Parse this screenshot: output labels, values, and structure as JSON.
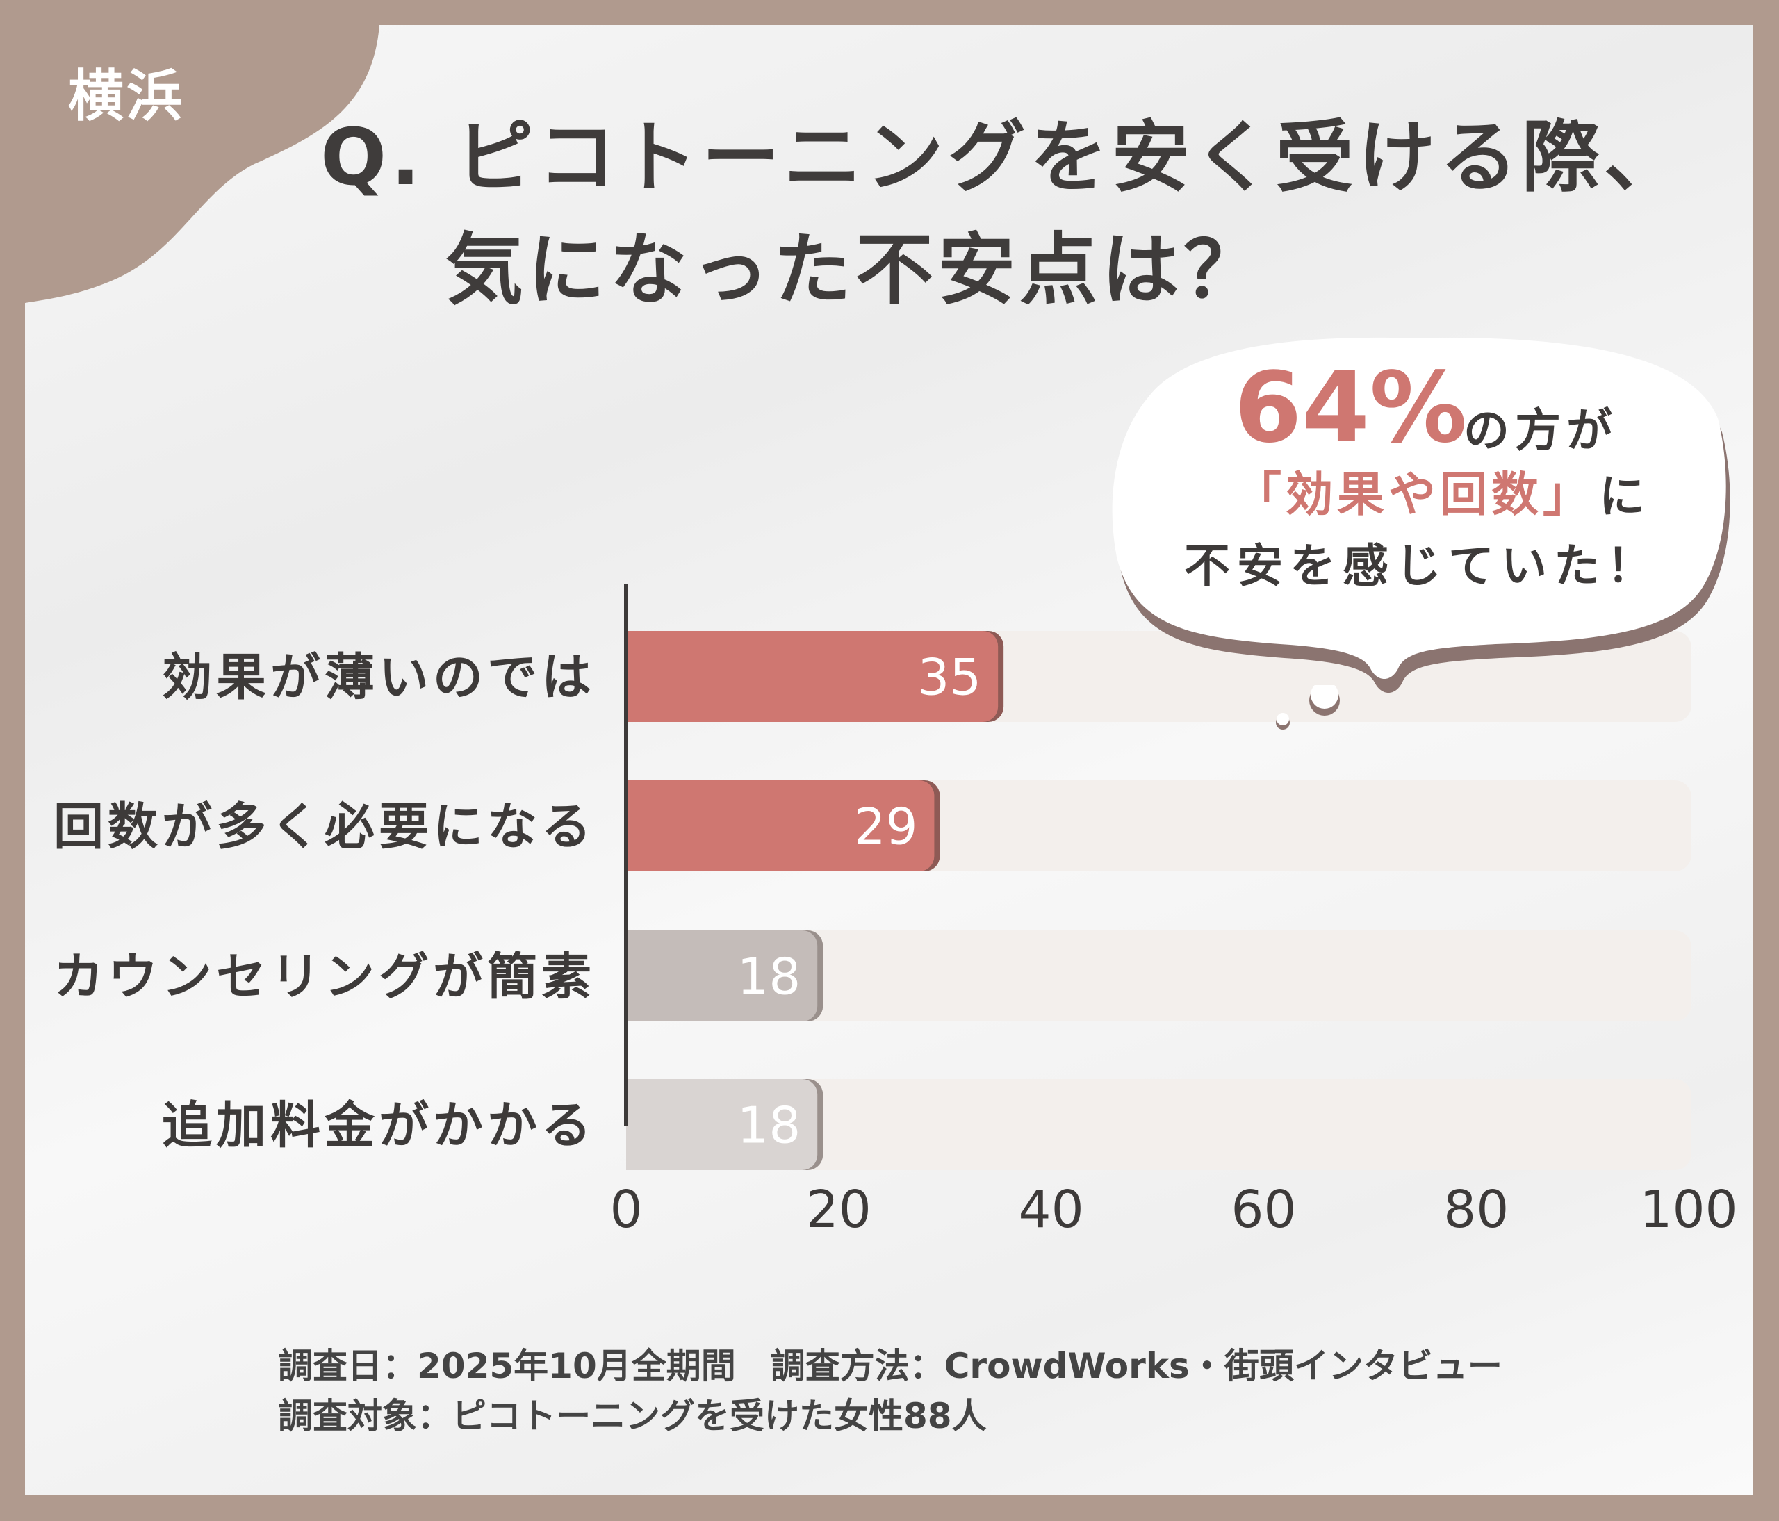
{
  "badge": "横浜",
  "title_line1": "Q. ピコトーニングを安く受ける際、",
  "title_line2": "気になった不安点は？",
  "callout": {
    "percent": "64%",
    "line1_rest": "の方が",
    "highlight": "「効果や回数」",
    "line2_rest": "に",
    "line3": "不安を感じていた！"
  },
  "footer": {
    "line1": "調査日：2025年10月全期間　調査方法：CrowdWorks・街頭インタビュー",
    "line2": "調査対象：ピコトーニングを受けた女性88人"
  },
  "colors": {
    "frame": "#b09a8e",
    "highlight_bar": "#cf7771",
    "gray_bar": "#c4bcb9",
    "light_gray_bar": "#d9d4d2",
    "track": "#f3efec",
    "accent_text": "#cf7771"
  },
  "chart_data": {
    "type": "bar",
    "orientation": "horizontal",
    "categories": [
      "効果が薄いのでは",
      "回数が多く必要になる",
      "カウンセリングが簡素",
      "追加料金がかかる"
    ],
    "values": [
      35,
      29,
      18,
      18
    ],
    "bar_colors": [
      "#cf7771",
      "#cf7771",
      "#c4bcb9",
      "#d9d4d2"
    ],
    "xlim": [
      0,
      100
    ],
    "xticks": [
      "0",
      "20",
      "40",
      "60",
      "80",
      "100"
    ],
    "grid": false
  }
}
